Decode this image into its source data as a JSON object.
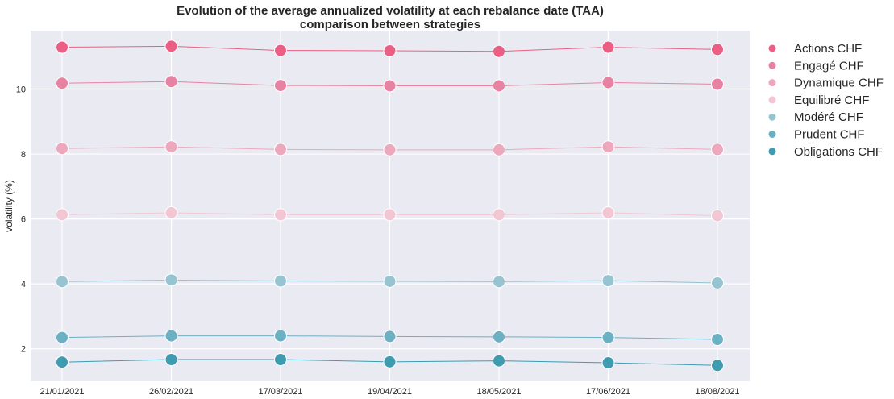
{
  "chart_data": {
    "type": "line",
    "title_lines": [
      "Evolution of the average annualized volatility at each rebalance date (TAA)",
      "comparison between strategies"
    ],
    "xlabel": "",
    "ylabel": "volatility (%)",
    "categories": [
      "21/01/2021",
      "26/02/2021",
      "17/03/2021",
      "19/04/2021",
      "18/05/2021",
      "17/06/2021",
      "18/08/2021"
    ],
    "yticks": [
      2,
      4,
      6,
      8,
      10
    ],
    "ylim": [
      1.0,
      11.8
    ],
    "grid": true,
    "legend_position": "outside-right",
    "background": "#eaeaf2",
    "series": [
      {
        "name": "Actions CHF",
        "color": "#ec5f84",
        "values": [
          11.29,
          11.32,
          11.19,
          11.18,
          11.16,
          11.29,
          11.22
        ]
      },
      {
        "name": "Engagé CHF",
        "color": "#e882a2",
        "values": [
          10.18,
          10.23,
          10.11,
          10.1,
          10.1,
          10.2,
          10.15
        ]
      },
      {
        "name": "Dynamique CHF",
        "color": "#eda8bd",
        "values": [
          8.17,
          8.22,
          8.14,
          8.13,
          8.13,
          8.22,
          8.14
        ]
      },
      {
        "name": "Equilibré CHF",
        "color": "#f2c7d3",
        "values": [
          6.13,
          6.19,
          6.13,
          6.13,
          6.13,
          6.19,
          6.1
        ]
      },
      {
        "name": "Modéré CHF",
        "color": "#96c4d1",
        "values": [
          4.07,
          4.12,
          4.09,
          4.08,
          4.07,
          4.1,
          4.03
        ]
      },
      {
        "name": "Prudent CHF",
        "color": "#6cb0c4",
        "values": [
          2.35,
          2.4,
          2.4,
          2.38,
          2.37,
          2.35,
          2.29
        ]
      },
      {
        "name": "Obligations CHF",
        "color": "#3f9bb0",
        "values": [
          1.59,
          1.67,
          1.67,
          1.6,
          1.63,
          1.57,
          1.49
        ]
      }
    ]
  }
}
